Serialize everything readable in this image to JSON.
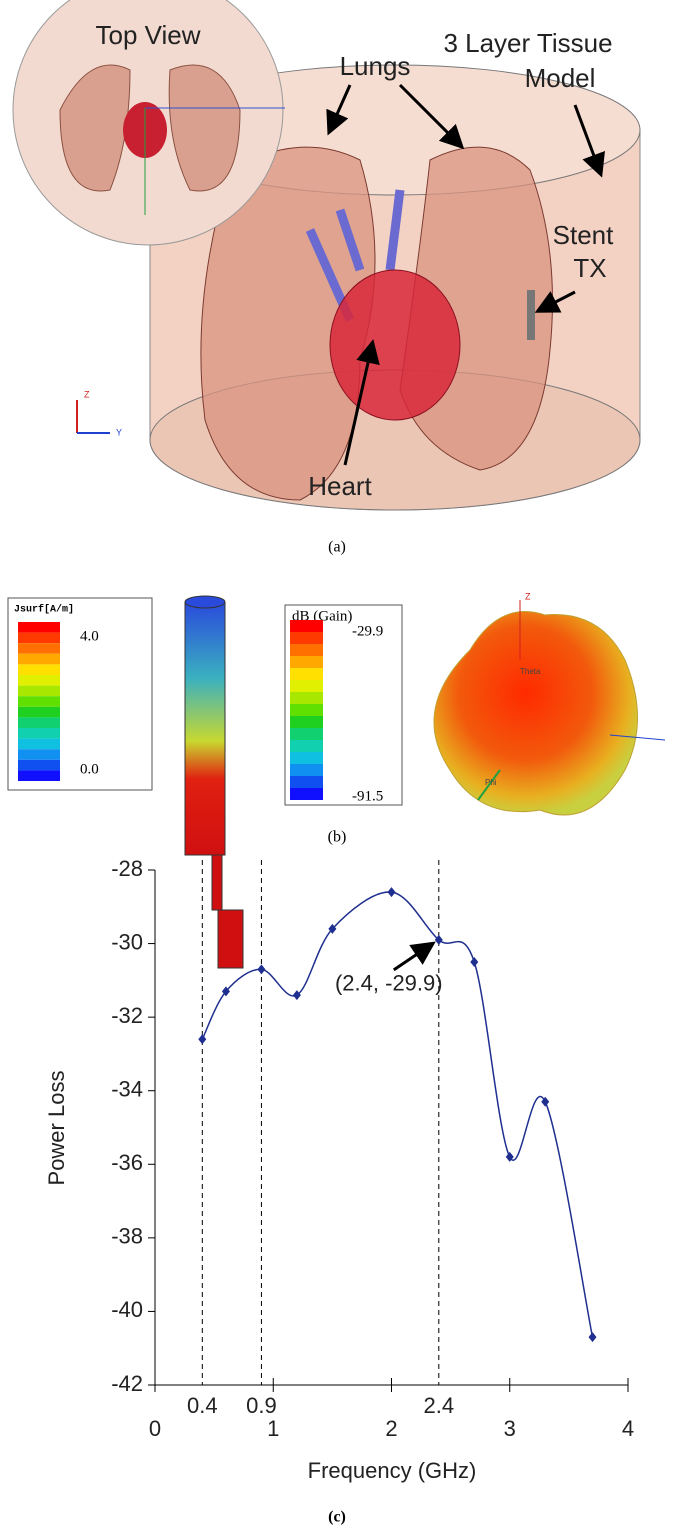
{
  "panel_a": {
    "inset_title": "Top View",
    "lungs": "Lungs",
    "tissue_lines": [
      "3 Layer Tissue",
      "Model"
    ],
    "stent_lines": [
      "Stent",
      "TX"
    ],
    "heart": "Heart",
    "axis_z": "Z",
    "axis_y": "Y",
    "caption": "(a)"
  },
  "panel_b": {
    "current_title": "Jsurf[A/m]",
    "current_max": "4.0",
    "current_min": "0.0",
    "gain_title": "dB (Gain)",
    "gain_max": "-29.9",
    "gain_min": "-91.5",
    "axis_z": "Z",
    "theta": "Theta",
    "phi": "Phi",
    "caption": "(b)"
  },
  "chart_data": {
    "type": "line",
    "xlabel": "Frequency (GHz)",
    "ylabel": "Power Loss",
    "x": [
      0.4,
      0.6,
      0.9,
      1.2,
      1.5,
      2.0,
      2.4,
      2.7,
      3.0,
      3.3,
      3.7
    ],
    "series": [
      {
        "name": "Power Loss",
        "color": "#1f2f8f",
        "values": [
          -32.6,
          -31.3,
          -30.7,
          -31.4,
          -29.6,
          -28.6,
          -29.9,
          -30.5,
          -35.8,
          -34.3,
          -40.7
        ]
      }
    ],
    "xlim": [
      0,
      4
    ],
    "xticks": [
      0,
      1,
      2,
      3,
      4
    ],
    "ylim": [
      -42,
      -28
    ],
    "yticks": [
      -42,
      -40,
      -38,
      -36,
      -34,
      -32,
      -30,
      -28
    ],
    "marked_x": [
      0.4,
      0.9,
      2.4
    ],
    "annotation": "(2.4, -29.9)",
    "caption": "(c)"
  }
}
